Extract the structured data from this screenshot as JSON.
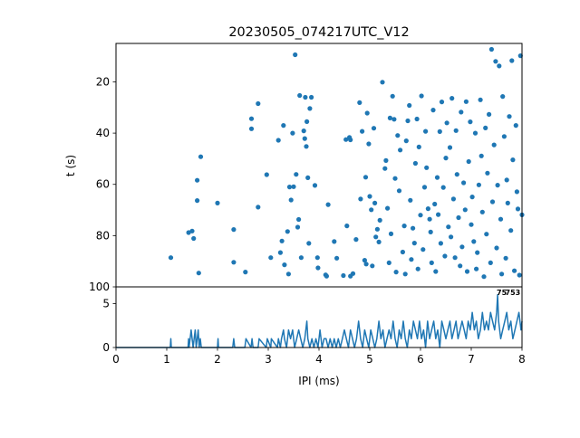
{
  "chart_data": [
    {
      "type": "scatter",
      "title": "20230505_074217UTC_V12",
      "xlabel": "",
      "ylabel": "t (s)",
      "xlim": [
        0,
        8
      ],
      "ylim": [
        100,
        5
      ],
      "y_inverted": true,
      "yticks": [
        "20",
        "40",
        "60",
        "80",
        "100"
      ],
      "color": "#1f77b4",
      "points": [
        [
          1.08,
          88.6
        ],
        [
          1.43,
          78.8
        ],
        [
          1.5,
          78.2
        ],
        [
          1.53,
          81.1
        ],
        [
          1.6,
          58.4
        ],
        [
          1.6,
          66.3
        ],
        [
          1.63,
          94.6
        ],
        [
          1.67,
          49.2
        ],
        [
          2.0,
          67.3
        ],
        [
          2.32,
          77.6
        ],
        [
          2.32,
          90.4
        ],
        [
          2.55,
          94.2
        ],
        [
          2.67,
          34.4
        ],
        [
          2.67,
          38.3
        ],
        [
          2.8,
          28.5
        ],
        [
          2.8,
          68.9
        ],
        [
          2.97,
          56.2
        ],
        [
          3.05,
          88.6
        ],
        [
          3.2,
          42.8
        ],
        [
          3.24,
          86.6
        ],
        [
          3.27,
          82.1
        ],
        [
          3.3,
          37.0
        ],
        [
          3.32,
          91.4
        ],
        [
          3.38,
          78.4
        ],
        [
          3.4,
          95.0
        ],
        [
          3.42,
          61.0
        ],
        [
          3.45,
          66.1
        ],
        [
          3.48,
          40.0
        ],
        [
          3.5,
          60.9
        ],
        [
          3.53,
          9.4
        ],
        [
          3.55,
          56.1
        ],
        [
          3.58,
          76.7
        ],
        [
          3.6,
          73.7
        ],
        [
          3.62,
          25.3
        ],
        [
          3.65,
          88.6
        ],
        [
          3.7,
          39.1
        ],
        [
          3.72,
          42.1
        ],
        [
          3.73,
          26.0
        ],
        [
          3.75,
          45.2
        ],
        [
          3.76,
          35.5
        ],
        [
          3.78,
          57.4
        ],
        [
          3.8,
          83.0
        ],
        [
          3.82,
          30.4
        ],
        [
          3.85,
          26.0
        ],
        [
          3.92,
          60.4
        ],
        [
          3.97,
          88.6
        ],
        [
          3.98,
          92.6
        ],
        [
          4.13,
          95.3
        ],
        [
          4.15,
          95.8
        ],
        [
          4.18,
          67.9
        ],
        [
          4.3,
          82.3
        ],
        [
          4.35,
          88.8
        ],
        [
          4.48,
          95.6
        ],
        [
          4.53,
          42.5
        ],
        [
          4.55,
          76.2
        ],
        [
          4.6,
          41.7
        ],
        [
          4.62,
          42.6
        ],
        [
          4.62,
          95.8
        ],
        [
          4.67,
          94.8
        ],
        [
          4.73,
          81.5
        ],
        [
          4.8,
          28.1
        ],
        [
          4.82,
          65.7
        ],
        [
          4.85,
          39.3
        ],
        [
          4.9,
          89.6
        ],
        [
          4.92,
          57.2
        ],
        [
          4.93,
          91.1
        ],
        [
          4.95,
          32.2
        ],
        [
          4.98,
          44.2
        ],
        [
          5.0,
          64.7
        ],
        [
          5.03,
          69.9
        ],
        [
          5.05,
          91.8
        ],
        [
          5.08,
          38.1
        ],
        [
          5.1,
          67.3
        ],
        [
          5.12,
          80.5
        ],
        [
          5.15,
          77.5
        ],
        [
          5.18,
          82.5
        ],
        [
          5.2,
          74.0
        ],
        [
          5.25,
          20.1
        ],
        [
          5.3,
          53.8
        ],
        [
          5.32,
          50.7
        ],
        [
          5.35,
          69.3
        ],
        [
          5.38,
          90.6
        ],
        [
          5.4,
          34.1
        ],
        [
          5.42,
          79.3
        ],
        [
          5.45,
          25.6
        ],
        [
          5.48,
          34.6
        ],
        [
          5.5,
          57.7
        ],
        [
          5.52,
          94.2
        ],
        [
          5.55,
          40.9
        ],
        [
          5.58,
          62.5
        ],
        [
          5.6,
          46.6
        ],
        [
          5.65,
          86.4
        ],
        [
          5.68,
          76.2
        ],
        [
          5.7,
          95.0
        ],
        [
          5.72,
          43.0
        ],
        [
          5.75,
          35.2
        ],
        [
          5.78,
          29.2
        ],
        [
          5.8,
          66.2
        ],
        [
          5.82,
          89.3
        ],
        [
          5.85,
          77.1
        ],
        [
          5.88,
          82.9
        ],
        [
          5.9,
          51.8
        ],
        [
          5.93,
          34.5
        ],
        [
          5.95,
          93.0
        ],
        [
          5.97,
          45.4
        ],
        [
          6.0,
          72.0
        ],
        [
          6.02,
          25.5
        ],
        [
          6.05,
          85.4
        ],
        [
          6.08,
          61.1
        ],
        [
          6.1,
          39.3
        ],
        [
          6.12,
          53.5
        ],
        [
          6.15,
          69.5
        ],
        [
          6.18,
          73.6
        ],
        [
          6.2,
          78.6
        ],
        [
          6.22,
          90.6
        ],
        [
          6.25,
          31.0
        ],
        [
          6.28,
          67.7
        ],
        [
          6.3,
          94.0
        ],
        [
          6.33,
          57.3
        ],
        [
          6.35,
          71.8
        ],
        [
          6.38,
          39.4
        ],
        [
          6.4,
          83.0
        ],
        [
          6.42,
          27.8
        ],
        [
          6.45,
          61.2
        ],
        [
          6.48,
          88.0
        ],
        [
          6.5,
          49.7
        ],
        [
          6.52,
          36.0
        ],
        [
          6.55,
          76.6
        ],
        [
          6.58,
          45.6
        ],
        [
          6.6,
          80.5
        ],
        [
          6.62,
          26.4
        ],
        [
          6.65,
          65.7
        ],
        [
          6.68,
          88.6
        ],
        [
          6.7,
          39.0
        ],
        [
          6.72,
          56.1
        ],
        [
          6.75,
          73.0
        ],
        [
          6.78,
          91.8
        ],
        [
          6.8,
          31.8
        ],
        [
          6.82,
          84.4
        ],
        [
          6.85,
          59.4
        ],
        [
          6.88,
          69.9
        ],
        [
          6.9,
          27.7
        ],
        [
          6.92,
          94.0
        ],
        [
          6.95,
          51.1
        ],
        [
          6.98,
          35.6
        ],
        [
          7.0,
          75.7
        ],
        [
          7.02,
          64.9
        ],
        [
          7.05,
          82.3
        ],
        [
          7.08,
          40.0
        ],
        [
          7.1,
          93.0
        ],
        [
          7.12,
          86.6
        ],
        [
          7.15,
          60.2
        ],
        [
          7.18,
          27.0
        ],
        [
          7.2,
          48.9
        ],
        [
          7.22,
          70.8
        ],
        [
          7.25,
          96.0
        ],
        [
          7.28,
          38.0
        ],
        [
          7.3,
          79.4
        ],
        [
          7.32,
          55.6
        ],
        [
          7.35,
          32.7
        ],
        [
          7.38,
          90.6
        ],
        [
          7.4,
          7.3
        ],
        [
          7.42,
          66.8
        ],
        [
          7.45,
          44.6
        ],
        [
          7.48,
          12.0
        ],
        [
          7.5,
          84.8
        ],
        [
          7.52,
          60.3
        ],
        [
          7.55,
          13.8
        ],
        [
          7.58,
          73.6
        ],
        [
          7.6,
          95.0
        ],
        [
          7.62,
          25.7
        ],
        [
          7.65,
          41.3
        ],
        [
          7.68,
          88.8
        ],
        [
          7.7,
          58.3
        ],
        [
          7.72,
          67.3
        ],
        [
          7.75,
          33.5
        ],
        [
          7.78,
          78.0
        ],
        [
          7.8,
          11.7
        ],
        [
          7.82,
          50.4
        ],
        [
          7.85,
          93.7
        ],
        [
          7.88,
          37.0
        ],
        [
          7.9,
          62.9
        ],
        [
          7.92,
          69.6
        ],
        [
          7.95,
          95.4
        ],
        [
          7.97,
          9.8
        ],
        [
          8.0,
          71.9
        ]
      ]
    },
    {
      "type": "line",
      "title": "",
      "xlabel": "IPI (ms)",
      "ylabel": "",
      "xlim": [
        0,
        8
      ],
      "ylim": [
        0,
        6.9
      ],
      "xticks": [
        "0",
        "1",
        "2",
        "3",
        "4",
        "5",
        "6",
        "7",
        "8"
      ],
      "yticks": [
        "0",
        "5"
      ],
      "color": "#1f77b4",
      "annotations": [
        {
          "text": "75",
          "x": 7.5,
          "y": 6.9
        },
        {
          "text": "753",
          "x": 7.67,
          "y": 6.9
        }
      ],
      "x": [
        0,
        1.07,
        1.08,
        1.09,
        1.42,
        1.43,
        1.44,
        1.46,
        1.48,
        1.5,
        1.52,
        1.54,
        1.56,
        1.58,
        1.6,
        1.62,
        1.64,
        1.66,
        1.68,
        2.0,
        2.01,
        2.02,
        2.3,
        2.32,
        2.34,
        2.54,
        2.56,
        2.66,
        2.68,
        2.7,
        2.8,
        2.82,
        2.96,
        2.98,
        3.05,
        3.06,
        3.18,
        3.2,
        3.24,
        3.26,
        3.3,
        3.32,
        3.36,
        3.4,
        3.44,
        3.48,
        3.52,
        3.56,
        3.6,
        3.64,
        3.68,
        3.72,
        3.76,
        3.78,
        3.82,
        3.86,
        3.9,
        3.94,
        3.98,
        4.02,
        4.06,
        4.1,
        4.14,
        4.18,
        4.22,
        4.26,
        4.3,
        4.34,
        4.38,
        4.42,
        4.46,
        4.5,
        4.54,
        4.58,
        4.62,
        4.66,
        4.7,
        4.74,
        4.78,
        4.82,
        4.86,
        4.9,
        4.94,
        4.98,
        5.02,
        5.06,
        5.1,
        5.14,
        5.18,
        5.22,
        5.26,
        5.3,
        5.34,
        5.38,
        5.42,
        5.46,
        5.5,
        5.54,
        5.58,
        5.62,
        5.66,
        5.7,
        5.74,
        5.78,
        5.82,
        5.86,
        5.9,
        5.94,
        5.98,
        6.02,
        6.06,
        6.1,
        6.14,
        6.18,
        6.22,
        6.26,
        6.3,
        6.34,
        6.38,
        6.42,
        6.46,
        6.5,
        6.54,
        6.58,
        6.62,
        6.66,
        6.7,
        6.74,
        6.78,
        6.82,
        6.86,
        6.9,
        6.94,
        6.98,
        7.02,
        7.06,
        7.1,
        7.14,
        7.18,
        7.22,
        7.26,
        7.3,
        7.34,
        7.38,
        7.42,
        7.46,
        7.5,
        7.52,
        7.54,
        7.58,
        7.62,
        7.66,
        7.7,
        7.74,
        7.78,
        7.82,
        7.86,
        7.9,
        7.94,
        7.98,
        8.0
      ],
      "y": [
        0,
        0,
        1,
        0,
        0,
        1,
        0,
        1,
        2,
        1,
        0,
        1,
        2,
        0,
        1,
        2,
        0,
        1,
        0,
        0,
        1,
        0,
        0,
        1,
        0,
        0,
        1,
        0,
        1,
        0,
        0,
        1,
        0,
        1,
        0,
        1,
        0,
        1,
        0,
        1,
        2,
        1,
        0,
        2,
        1,
        2,
        0,
        1,
        2,
        1,
        0,
        1,
        3,
        1,
        0,
        1,
        0,
        1,
        0,
        2,
        0,
        1,
        1,
        0,
        1,
        0,
        1,
        0,
        1,
        0,
        1,
        2,
        1,
        0,
        2,
        1,
        0,
        1,
        3,
        1,
        0,
        2,
        1,
        0,
        2,
        1,
        0,
        1,
        3,
        1,
        2,
        0,
        1,
        2,
        1,
        3,
        1,
        0,
        2,
        1,
        3,
        1,
        0,
        2,
        1,
        3,
        2,
        1,
        3,
        1,
        2,
        0,
        3,
        1,
        2,
        3,
        1,
        2,
        0,
        3,
        2,
        1,
        2,
        3,
        1,
        2,
        3,
        1,
        2,
        3,
        2,
        1,
        3,
        2,
        4,
        2,
        3,
        1,
        2,
        4,
        2,
        3,
        2,
        4,
        3,
        2,
        4,
        6,
        3,
        1,
        2,
        3,
        4,
        2,
        3,
        1,
        2,
        3,
        4,
        2,
        3
      ]
    }
  ]
}
